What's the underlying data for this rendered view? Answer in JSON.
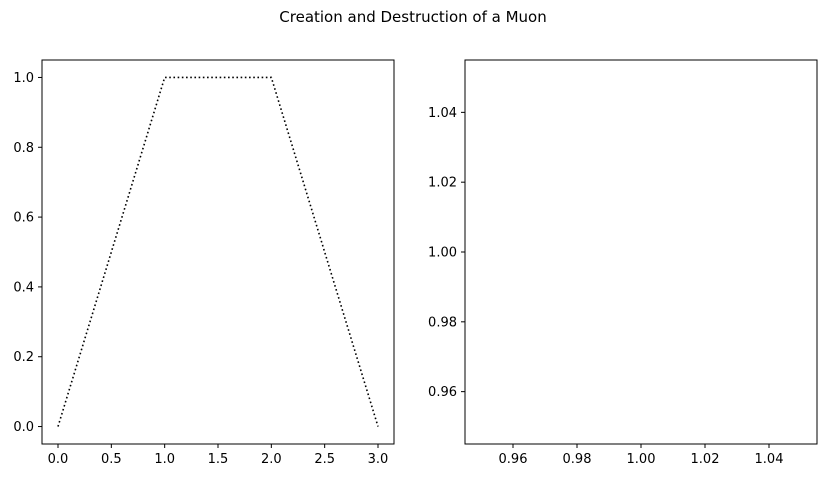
{
  "figure": {
    "suptitle": "Creation and Destruction of a Muon"
  },
  "chart_data": [
    {
      "type": "line",
      "title": "",
      "xlabel": "",
      "ylabel": "",
      "xlim": [
        -0.15,
        3.15
      ],
      "ylim": [
        -0.05,
        1.05
      ],
      "xticks": [
        0.0,
        0.5,
        1.0,
        1.5,
        2.0,
        2.5,
        3.0
      ],
      "xtick_labels": [
        "0.0",
        "0.5",
        "1.0",
        "1.5",
        "2.0",
        "2.5",
        "3.0"
      ],
      "yticks": [
        0.0,
        0.2,
        0.4,
        0.6,
        0.8,
        1.0
      ],
      "ytick_labels": [
        "0.0",
        "0.2",
        "0.4",
        "0.6",
        "0.8",
        "1.0"
      ],
      "grid": false,
      "legend": "none",
      "series": [
        {
          "x": [
            0,
            1,
            2,
            3
          ],
          "y": [
            0,
            1,
            1,
            0
          ],
          "color": "#000000",
          "linestyle": "dotted"
        }
      ]
    },
    {
      "type": "line",
      "title": "",
      "xlabel": "",
      "ylabel": "",
      "xlim": [
        0.945,
        1.055
      ],
      "ylim": [
        0.945,
        1.055
      ],
      "xticks": [
        0.96,
        0.98,
        1.0,
        1.02,
        1.04
      ],
      "xtick_labels": [
        "0.96",
        "0.98",
        "1.00",
        "1.02",
        "1.04"
      ],
      "yticks": [
        0.96,
        0.98,
        1.0,
        1.02,
        1.04
      ],
      "ytick_labels": [
        "0.96",
        "0.98",
        "1.00",
        "1.02",
        "1.04"
      ],
      "grid": false,
      "legend": "none",
      "series": []
    }
  ]
}
